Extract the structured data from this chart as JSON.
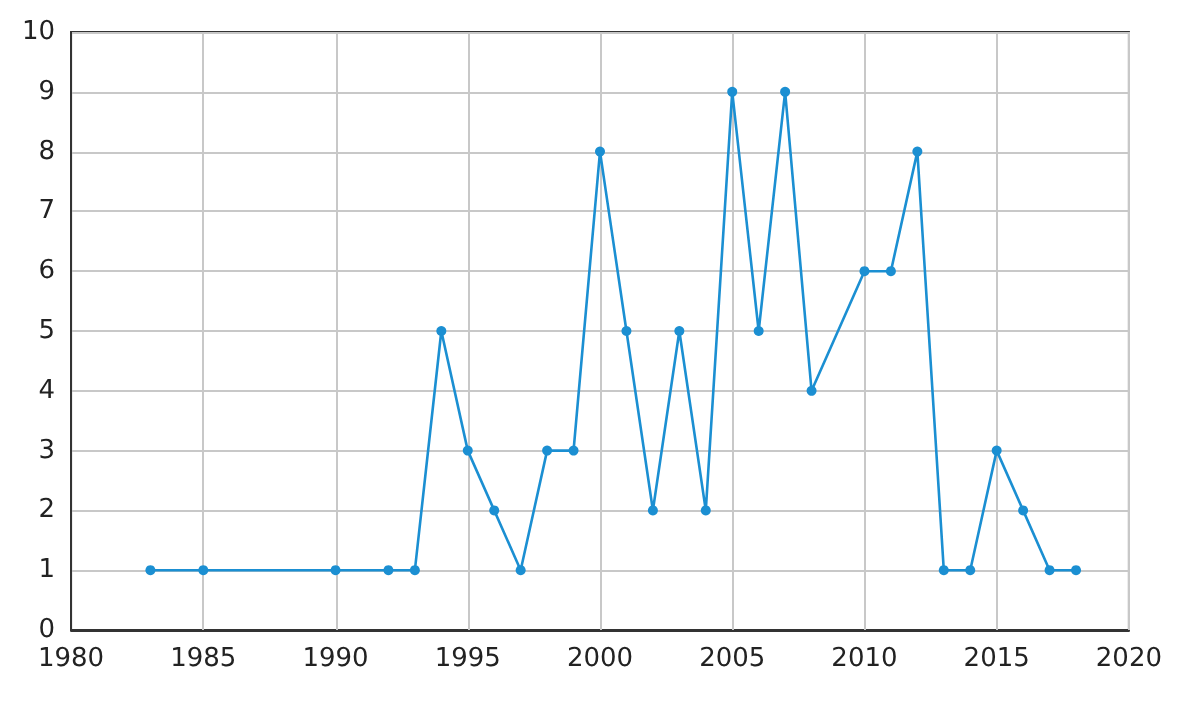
{
  "chart_data": {
    "type": "line",
    "x": [
      1983,
      1985,
      1990,
      1992,
      1993,
      1994,
      1995,
      1996,
      1997,
      1998,
      1999,
      2000,
      2001,
      2002,
      2003,
      2004,
      2005,
      2006,
      2007,
      2008,
      2010,
      2011,
      2012,
      2013,
      2014,
      2015,
      2016,
      2017,
      2018
    ],
    "series": [
      {
        "color": "#1b8fd2",
        "values": [
          1,
          1,
          1,
          1,
          1,
          5,
          3,
          2,
          1,
          3,
          3,
          8,
          5,
          2,
          5,
          2,
          9,
          5,
          9,
          4,
          6,
          6,
          8,
          1,
          1,
          3,
          2,
          1,
          1
        ]
      }
    ],
    "xlim": [
      1980,
      2020
    ],
    "xticks": [
      1980,
      1985,
      1990,
      1995,
      2000,
      2005,
      2010,
      2015,
      2020
    ],
    "ylim": [
      0,
      10
    ],
    "yticks": [
      0,
      1,
      2,
      3,
      4,
      5,
      6,
      7,
      8,
      9,
      10
    ],
    "grid": true,
    "marker": "circle",
    "line_style": "solid"
  }
}
